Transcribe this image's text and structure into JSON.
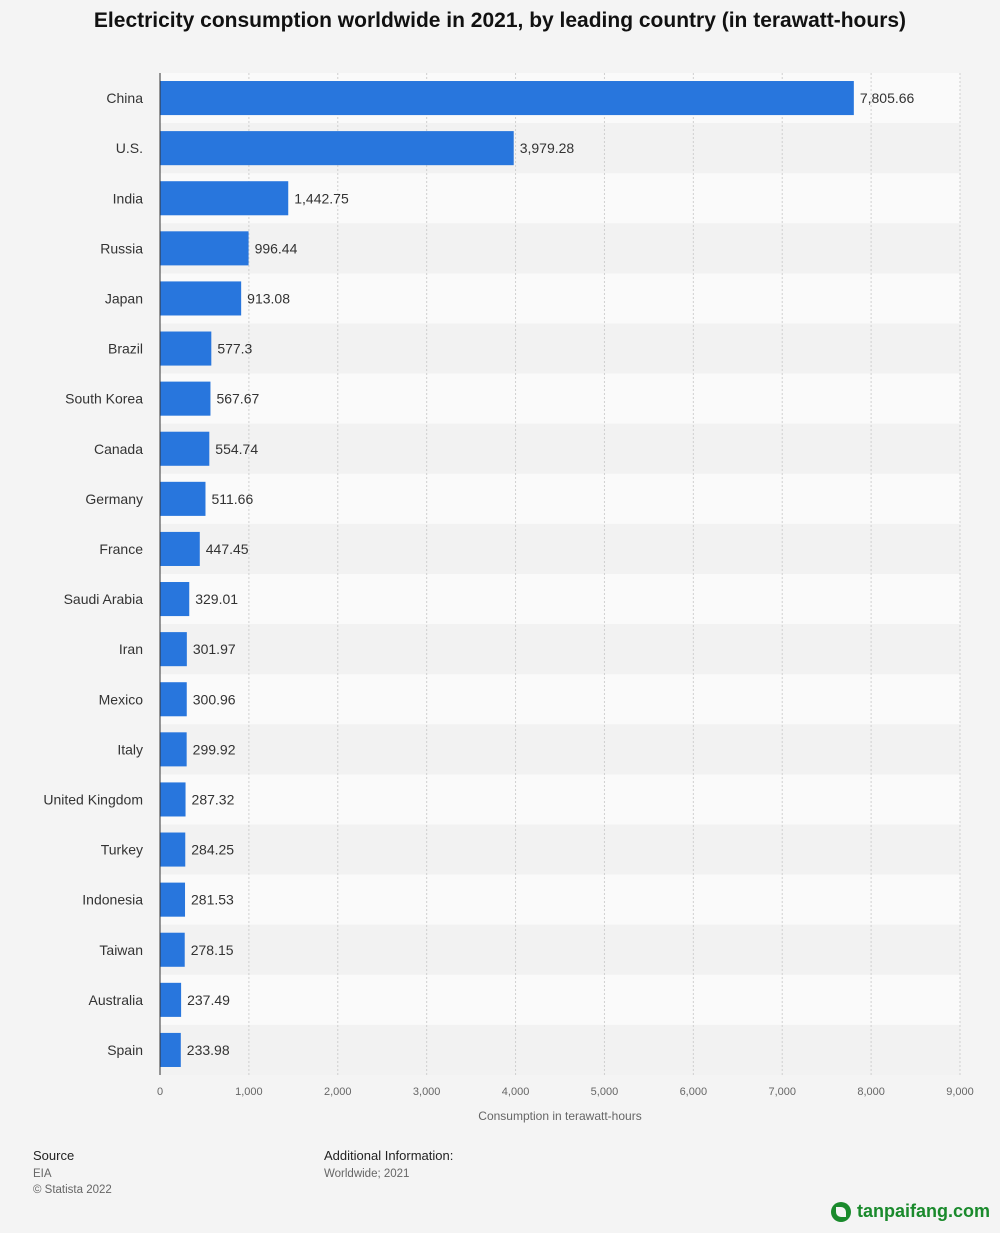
{
  "chart_data": {
    "type": "bar",
    "orientation": "horizontal",
    "title": "Electricity consumption worldwide in 2021, by leading country (in terawatt-hours)",
    "xlabel": "Consumption in terawatt-hours",
    "ylabel": "",
    "xlim": [
      0,
      9000
    ],
    "ticks": [
      "0",
      "1,000",
      "2,000",
      "3,000",
      "4,000",
      "5,000",
      "6,000",
      "7,000",
      "8,000",
      "9,000"
    ],
    "tick_values": [
      0,
      1000,
      2000,
      3000,
      4000,
      5000,
      6000,
      7000,
      8000,
      9000
    ],
    "grid": true,
    "bar_color": "#2876dd",
    "categories": [
      "China",
      "U.S.",
      "India",
      "Russia",
      "Japan",
      "Brazil",
      "South Korea",
      "Canada",
      "Germany",
      "France",
      "Saudi Arabia",
      "Iran",
      "Mexico",
      "Italy",
      "United Kingdom",
      "Turkey",
      "Indonesia",
      "Taiwan",
      "Australia",
      "Spain"
    ],
    "values": [
      7805.66,
      3979.28,
      1442.75,
      996.44,
      913.08,
      577.3,
      567.67,
      554.74,
      511.66,
      447.45,
      329.01,
      301.97,
      300.96,
      299.92,
      287.32,
      284.25,
      281.53,
      278.15,
      237.49,
      233.98
    ],
    "value_labels": [
      "7,805.66",
      "3,979.28",
      "1,442.75",
      "996.44",
      "913.08",
      "577.3",
      "567.67",
      "554.74",
      "511.66",
      "447.45",
      "329.01",
      "301.97",
      "300.96",
      "299.92",
      "287.32",
      "284.25",
      "281.53",
      "278.15",
      "237.49",
      "233.98"
    ]
  },
  "footer": {
    "source_heading": "Source",
    "source_lines": [
      "EIA",
      "© Statista 2022"
    ],
    "info_heading": "Additional Information:",
    "info_lines": [
      "Worldwide; 2021"
    ]
  },
  "watermark": {
    "text": "tanpaifang.com",
    "icon": "leaf-logo-icon"
  }
}
